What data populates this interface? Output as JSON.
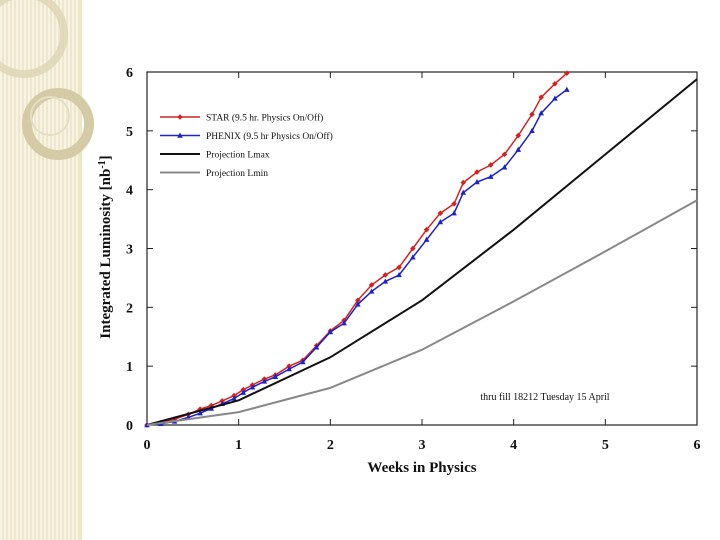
{
  "chart_data": {
    "type": "line",
    "title": "",
    "xlabel": "Weeks in Physics",
    "ylabel": "Integrated Luminosity [nb",
    "ylabel_sup": "-1",
    "ylabel_close": "]",
    "xlim": [
      0,
      6
    ],
    "ylim": [
      0,
      6
    ],
    "x_ticks": [
      "0",
      "1",
      "2",
      "3",
      "4",
      "5",
      "6"
    ],
    "y_ticks": [
      "0",
      "1",
      "2",
      "3",
      "4",
      "5",
      "6"
    ],
    "grid": false,
    "legend_position": "top-left",
    "annotation": "thru fill 18212  Tuesday 15 April",
    "series": [
      {
        "name": "STAR (9.5 hr. Physics On/Off)",
        "color": "#d42222",
        "marker": "diamond",
        "x": [
          0,
          0.15,
          0.3,
          0.45,
          0.58,
          0.7,
          0.82,
          0.95,
          1.05,
          1.15,
          1.28,
          1.4,
          1.55,
          1.7,
          1.85,
          2.0,
          2.15,
          2.3,
          2.45,
          2.6,
          2.75,
          2.9,
          3.05,
          3.2,
          3.35,
          3.45,
          3.6,
          3.75,
          3.9,
          4.05,
          4.2,
          4.3,
          4.45,
          4.58
        ],
        "y": [
          0,
          0.04,
          0.1,
          0.18,
          0.27,
          0.33,
          0.41,
          0.5,
          0.6,
          0.68,
          0.78,
          0.85,
          1.0,
          1.1,
          1.35,
          1.6,
          1.78,
          2.12,
          2.38,
          2.55,
          2.68,
          3.0,
          3.32,
          3.6,
          3.76,
          4.12,
          4.3,
          4.42,
          4.6,
          4.92,
          5.28,
          5.57,
          5.8,
          5.98
        ]
      },
      {
        "name": "PHENIX (9.5 hr Physics On/Off)",
        "color": "#1a22c8",
        "marker": "triangle",
        "x": [
          0,
          0.15,
          0.3,
          0.45,
          0.58,
          0.7,
          0.82,
          0.95,
          1.05,
          1.15,
          1.28,
          1.4,
          1.55,
          1.7,
          1.85,
          2.0,
          2.15,
          2.3,
          2.45,
          2.6,
          2.75,
          2.9,
          3.05,
          3.2,
          3.35,
          3.45,
          3.6,
          3.75,
          3.9,
          4.05,
          4.2,
          4.3,
          4.45,
          4.58
        ],
        "y": [
          0,
          0.02,
          0.06,
          0.13,
          0.2,
          0.28,
          0.36,
          0.45,
          0.55,
          0.64,
          0.74,
          0.82,
          0.95,
          1.07,
          1.32,
          1.58,
          1.73,
          2.05,
          2.27,
          2.44,
          2.55,
          2.85,
          3.15,
          3.45,
          3.6,
          3.95,
          4.13,
          4.22,
          4.38,
          4.68,
          5.0,
          5.3,
          5.55,
          5.7
        ]
      },
      {
        "name": "Projection Lmax",
        "color": "#111111",
        "marker": "none",
        "x": [
          0,
          1,
          2,
          3,
          4,
          5,
          6
        ],
        "y": [
          0,
          0.42,
          1.15,
          2.12,
          3.32,
          4.6,
          5.88
        ]
      },
      {
        "name": "Projection Lmin",
        "color": "#888888",
        "marker": "none",
        "x": [
          0,
          1,
          2,
          3,
          4,
          5,
          6
        ],
        "y": [
          0,
          0.22,
          0.63,
          1.28,
          2.1,
          2.95,
          3.82
        ]
      }
    ]
  }
}
